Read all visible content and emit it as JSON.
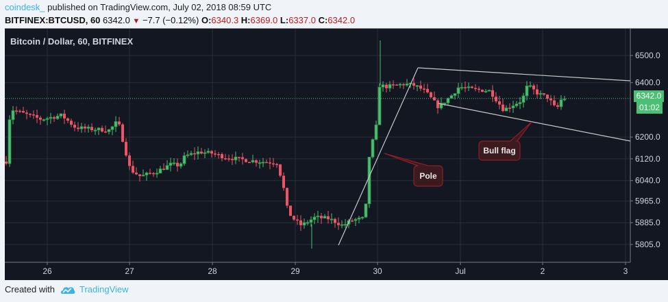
{
  "header": {
    "username": "coindesk_",
    "published_text": " published on TradingView.com, July 02, 2018 08:59 UTC",
    "symbol": "BITFINEX:BTCUSD, 60",
    "last_price": "6342.0",
    "change_direction_icon": "down-triangle-icon",
    "change": "−7.7 (−0.12%)",
    "open_label": "O:",
    "open": "6340.3",
    "high_label": "H:",
    "high": "6369.0",
    "low_label": "L:",
    "low": "6337.0",
    "close_label": "C:",
    "close": "6342.0"
  },
  "chart": {
    "title": "Bitcoin / Dollar, 60, BITFINEX",
    "current_price_tag": "6342.0",
    "countdown_tag": "01:02",
    "colors": {
      "background": "#131722",
      "grid": "#2a2e39",
      "up": "#4bbf73",
      "up_border": "#2f8a3f",
      "down": "#ef5466",
      "price_line": "#4bbf73",
      "trendline": "#c8c8c8",
      "callout_fill": "#3b1a20",
      "callout_border": "#8f1d24"
    }
  },
  "annotations": {
    "pole_label": "Pole",
    "flag_label": "Bull flag"
  },
  "footer": {
    "created_with": "Created with",
    "brand": "TradingView"
  },
  "chart_data": {
    "type": "candlestick",
    "title": "Bitcoin / Dollar, 60, BITFINEX",
    "subtitle": "BITFINEX:BTCUSD, 60  6342.0 −7.7 (−0.12%) O:6340.3 H:6369.0 L:6337.0 C:6342.0",
    "xlabel": "",
    "ylabel": "",
    "x_ticks": [
      "26",
      "27",
      "28",
      "29",
      "30",
      "Jul",
      "2",
      "3"
    ],
    "y_ticks": [
      6500.0,
      6400.0,
      6342.0,
      6200.0,
      6120.0,
      6040.0,
      5965.0,
      5885.0,
      5805.0
    ],
    "ylim": [
      5760,
      6560
    ],
    "grid": true,
    "last_price": 6342.0,
    "annotations": [
      {
        "text": "Pole",
        "type": "callout",
        "points_to": "steep rally line from ~5800 (Jun 29) to ~6450 (Jun 30)"
      },
      {
        "text": "Bull flag",
        "type": "callout",
        "points_to": "descending channel Jun 30 - Jul 2 (upper ~6450→6400, lower ~6310→6170)"
      }
    ],
    "trendlines": [
      {
        "name": "pole",
        "from": [
          "Jun 29 14:00",
          5800
        ],
        "to": [
          "Jun 30 12:00",
          6455
        ]
      },
      {
        "name": "flag-upper",
        "from": [
          "Jun 30 12:00",
          6455
        ],
        "to": [
          "Jul 3 00:00",
          6402
        ]
      },
      {
        "name": "flag-lower",
        "from": [
          "Jul 1 03:00",
          6313
        ],
        "to": [
          "Jul 3 00:00",
          6175
        ]
      }
    ],
    "approx_daily_path": [
      {
        "day": "Jun 25 late",
        "open": 6110,
        "close": 6300
      },
      {
        "day": "Jun 26",
        "open": 6300,
        "close": 6200
      },
      {
        "day": "Jun 27",
        "open": 6200,
        "close": 6060
      },
      {
        "day": "Jun 28",
        "open": 6060,
        "close": 6110
      },
      {
        "day": "Jun 29",
        "open": 6110,
        "close": 5880
      },
      {
        "day": "Jun 30",
        "open": 5880,
        "close": 6390
      },
      {
        "day": "Jul 1",
        "open": 6390,
        "close": 6360
      },
      {
        "day": "Jul 2",
        "open": 6360,
        "close": 6342
      }
    ]
  }
}
